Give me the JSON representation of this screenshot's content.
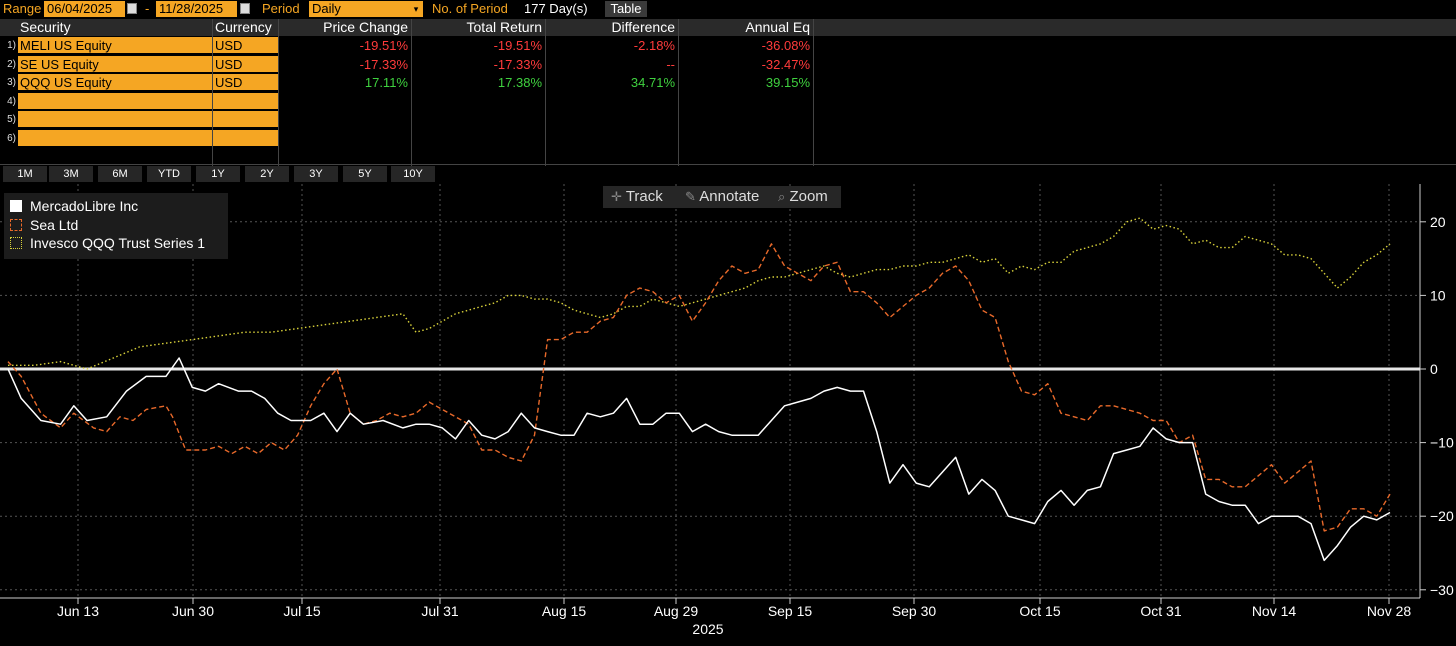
{
  "topbar": {
    "range_label": "Range",
    "start_date": "06/04/2025",
    "dash": "-",
    "end_date": "11/28/2025",
    "period_label": "Period",
    "period_value": "Daily",
    "num_period_label": "No. of Period",
    "num_period_value": "177 Day(s)",
    "table_button": "Table"
  },
  "table": {
    "headers": [
      "Security",
      "Currency",
      "Price Change",
      "Total Return",
      "Difference",
      "Annual Eq"
    ],
    "rows": [
      {
        "idx": "1)",
        "security": "MELI US Equity",
        "currency": "USD",
        "price_change": "-19.51%",
        "total_return": "-19.51%",
        "difference": "-2.18%",
        "annual_eq": "-36.08%"
      },
      {
        "idx": "2)",
        "security": "SE US Equity",
        "currency": "USD",
        "price_change": "-17.33%",
        "total_return": "-17.33%",
        "difference": "--",
        "annual_eq": "-32.47%"
      },
      {
        "idx": "3)",
        "security": "QQQ US Equity",
        "currency": "USD",
        "price_change": "17.11%",
        "total_return": "17.38%",
        "difference": "34.71%",
        "annual_eq": "39.15%"
      },
      {
        "idx": "4)",
        "security": "",
        "currency": "",
        "price_change": "",
        "total_return": "",
        "difference": "",
        "annual_eq": ""
      },
      {
        "idx": "5)",
        "security": "",
        "currency": "",
        "price_change": "",
        "total_return": "",
        "difference": "",
        "annual_eq": ""
      },
      {
        "idx": "6)",
        "security": "",
        "currency": "",
        "price_change": "",
        "total_return": "",
        "difference": "",
        "annual_eq": ""
      }
    ],
    "colors": {
      "negative": "#ff3b3b",
      "positive": "#3fd13f",
      "accent": "#f5a623"
    }
  },
  "period_buttons": [
    "1M",
    "3M",
    "6M",
    "YTD",
    "1Y",
    "2Y",
    "3Y",
    "5Y",
    "10Y"
  ],
  "tools": {
    "track": "Track",
    "annotate": "Annotate",
    "zoom": "Zoom"
  },
  "chart_data": {
    "type": "line",
    "xlabel": "2025",
    "x_tick_labels": [
      "Jun 13",
      "Jun 30",
      "Jul 15",
      "Jul 31",
      "Aug 15",
      "Aug 29",
      "Sep 15",
      "Sep 30",
      "Oct 15",
      "Oct 31",
      "Nov 14",
      "Nov 28"
    ],
    "y_ticks": [
      20,
      10,
      0,
      -10,
      -20,
      -30
    ],
    "ylim": [
      -30,
      22
    ],
    "legend_position": "top-left",
    "grid": true,
    "series": [
      {
        "name": "MercadoLibre Inc",
        "color": "#ffffff",
        "style": "solid",
        "points": [
          [
            0,
            0
          ],
          [
            2,
            -4
          ],
          [
            5,
            -7
          ],
          [
            8,
            -7.5
          ],
          [
            10,
            -5
          ],
          [
            12,
            -7
          ],
          [
            15,
            -6.5
          ],
          [
            18,
            -3
          ],
          [
            21,
            -1
          ],
          [
            24,
            -1
          ],
          [
            26,
            1.5
          ],
          [
            28,
            -2.5
          ],
          [
            30,
            -3
          ],
          [
            32,
            -2
          ],
          [
            35,
            -3
          ],
          [
            37,
            -3
          ],
          [
            39,
            -4
          ],
          [
            41,
            -6
          ],
          [
            43,
            -7
          ],
          [
            46,
            -7
          ],
          [
            48,
            -6
          ],
          [
            50,
            -8.5
          ],
          [
            52,
            -6
          ],
          [
            54,
            -7.5
          ],
          [
            57,
            -7
          ],
          [
            60,
            -8
          ],
          [
            62,
            -7.5
          ],
          [
            64,
            -7.5
          ],
          [
            66,
            -8
          ],
          [
            68,
            -9.5
          ],
          [
            70,
            -7
          ],
          [
            72,
            -9
          ],
          [
            74,
            -9.5
          ],
          [
            76,
            -8.5
          ],
          [
            78,
            -6
          ],
          [
            80,
            -8
          ],
          [
            82,
            -8.5
          ],
          [
            84,
            -9
          ],
          [
            86,
            -9
          ],
          [
            88,
            -6
          ],
          [
            90,
            -6.5
          ],
          [
            92,
            -6
          ],
          [
            94,
            -4
          ],
          [
            96,
            -7.5
          ],
          [
            98,
            -7.5
          ],
          [
            100,
            -6
          ],
          [
            102,
            -6
          ],
          [
            104,
            -8.5
          ],
          [
            106,
            -7.5
          ],
          [
            108,
            -8.5
          ],
          [
            110,
            -9
          ],
          [
            112,
            -9
          ],
          [
            114,
            -9
          ],
          [
            116,
            -7
          ],
          [
            118,
            -5
          ],
          [
            120,
            -4.5
          ],
          [
            122,
            -4
          ],
          [
            124,
            -3
          ],
          [
            126,
            -2.5
          ],
          [
            128,
            -3
          ],
          [
            130,
            -3
          ],
          [
            132,
            -8.5
          ],
          [
            134,
            -15.5
          ],
          [
            136,
            -13
          ],
          [
            138,
            -15.5
          ],
          [
            140,
            -16
          ],
          [
            142,
            -14
          ],
          [
            144,
            -12
          ],
          [
            146,
            -17
          ],
          [
            148,
            -15
          ],
          [
            150,
            -16.5
          ],
          [
            152,
            -20
          ],
          [
            154,
            -20.5
          ],
          [
            156,
            -21
          ],
          [
            158,
            -18
          ],
          [
            160,
            -16.5
          ],
          [
            162,
            -18.5
          ],
          [
            164,
            -16.5
          ],
          [
            166,
            -16
          ],
          [
            168,
            -11.5
          ],
          [
            170,
            -11
          ],
          [
            172,
            -10.5
          ],
          [
            174,
            -8
          ],
          [
            176,
            -9.5
          ],
          [
            178,
            -10
          ],
          [
            180,
            -10
          ],
          [
            182,
            -17
          ],
          [
            184,
            -18
          ],
          [
            186,
            -18.5
          ],
          [
            188,
            -18.5
          ],
          [
            190,
            -21
          ],
          [
            192,
            -20
          ],
          [
            194,
            -20
          ],
          [
            196,
            -20
          ],
          [
            198,
            -21
          ],
          [
            200,
            -26
          ],
          [
            202,
            -24
          ],
          [
            204,
            -21.5
          ],
          [
            206,
            -20
          ],
          [
            208,
            -20.5
          ],
          [
            210,
            -19.5
          ]
        ]
      },
      {
        "name": "Sea Ltd",
        "color": "#e8692a",
        "style": "dashed",
        "points": [
          [
            0,
            1
          ],
          [
            2,
            -1
          ],
          [
            5,
            -6
          ],
          [
            8,
            -8
          ],
          [
            10,
            -6
          ],
          [
            13,
            -8
          ],
          [
            15,
            -8.5
          ],
          [
            17,
            -6.5
          ],
          [
            19,
            -7
          ],
          [
            21,
            -5.5
          ],
          [
            24,
            -5
          ],
          [
            25,
            -6.5
          ],
          [
            27,
            -11
          ],
          [
            30,
            -11
          ],
          [
            32,
            -10.5
          ],
          [
            34,
            -11.5
          ],
          [
            36,
            -10.5
          ],
          [
            38,
            -11.5
          ],
          [
            40,
            -10
          ],
          [
            42,
            -11
          ],
          [
            44,
            -9
          ],
          [
            46,
            -5
          ],
          [
            48,
            -2
          ],
          [
            50,
            0
          ],
          [
            52,
            -6
          ],
          [
            54,
            -7.5
          ],
          [
            56,
            -7
          ],
          [
            58,
            -6
          ],
          [
            60,
            -6.5
          ],
          [
            62,
            -6
          ],
          [
            64,
            -4.5
          ],
          [
            66,
            -5.5
          ],
          [
            68,
            -6.5
          ],
          [
            70,
            -7.5
          ],
          [
            72,
            -11
          ],
          [
            74,
            -11
          ],
          [
            76,
            -12
          ],
          [
            78,
            -12.5
          ],
          [
            80,
            -9
          ],
          [
            82,
            4
          ],
          [
            84,
            4
          ],
          [
            86,
            5
          ],
          [
            88,
            5
          ],
          [
            90,
            6.5
          ],
          [
            92,
            7
          ],
          [
            94,
            10
          ],
          [
            96,
            11
          ],
          [
            98,
            10.5
          ],
          [
            100,
            9
          ],
          [
            102,
            10
          ],
          [
            104,
            6.5
          ],
          [
            106,
            9
          ],
          [
            108,
            12
          ],
          [
            110,
            14
          ],
          [
            112,
            13
          ],
          [
            114,
            13.5
          ],
          [
            116,
            17
          ],
          [
            118,
            14
          ],
          [
            120,
            13
          ],
          [
            122,
            12
          ],
          [
            124,
            14
          ],
          [
            126,
            14.5
          ],
          [
            128,
            10.5
          ],
          [
            130,
            10.5
          ],
          [
            132,
            9
          ],
          [
            134,
            7
          ],
          [
            136,
            8.5
          ],
          [
            138,
            10
          ],
          [
            140,
            11
          ],
          [
            142,
            13
          ],
          [
            144,
            14
          ],
          [
            146,
            12
          ],
          [
            148,
            8
          ],
          [
            150,
            7
          ],
          [
            152,
            1
          ],
          [
            154,
            -3
          ],
          [
            156,
            -3.5
          ],
          [
            158,
            -2
          ],
          [
            160,
            -6
          ],
          [
            162,
            -6.5
          ],
          [
            164,
            -7
          ],
          [
            166,
            -5
          ],
          [
            168,
            -5
          ],
          [
            170,
            -5.5
          ],
          [
            172,
            -6
          ],
          [
            174,
            -7
          ],
          [
            176,
            -7
          ],
          [
            178,
            -10
          ],
          [
            180,
            -9
          ],
          [
            182,
            -15
          ],
          [
            184,
            -15
          ],
          [
            186,
            -16
          ],
          [
            188,
            -16
          ],
          [
            190,
            -14.5
          ],
          [
            192,
            -13
          ],
          [
            194,
            -15.5
          ],
          [
            196,
            -14
          ],
          [
            198,
            -12.5
          ],
          [
            200,
            -22
          ],
          [
            202,
            -21.5
          ],
          [
            204,
            -19
          ],
          [
            206,
            -19
          ],
          [
            208,
            -20
          ],
          [
            210,
            -17
          ]
        ]
      },
      {
        "name": "Invesco QQQ Trust Series 1",
        "color": "#d9d23a",
        "style": "dotted",
        "points": [
          [
            0,
            0.5
          ],
          [
            4,
            0.5
          ],
          [
            8,
            1
          ],
          [
            12,
            0
          ],
          [
            16,
            1.5
          ],
          [
            20,
            3
          ],
          [
            24,
            3.5
          ],
          [
            28,
            4
          ],
          [
            32,
            4.5
          ],
          [
            36,
            5
          ],
          [
            40,
            5
          ],
          [
            44,
            5.5
          ],
          [
            48,
            6
          ],
          [
            52,
            6.5
          ],
          [
            56,
            7
          ],
          [
            60,
            7.5
          ],
          [
            62,
            5
          ],
          [
            64,
            5.5
          ],
          [
            66,
            6.5
          ],
          [
            68,
            7.5
          ],
          [
            70,
            8
          ],
          [
            72,
            8.5
          ],
          [
            74,
            9
          ],
          [
            76,
            10
          ],
          [
            78,
            10
          ],
          [
            80,
            9.5
          ],
          [
            82,
            9.5
          ],
          [
            84,
            9
          ],
          [
            86,
            8
          ],
          [
            88,
            7.5
          ],
          [
            90,
            7
          ],
          [
            92,
            7.5
          ],
          [
            94,
            8.5
          ],
          [
            96,
            8.5
          ],
          [
            98,
            9.5
          ],
          [
            100,
            9
          ],
          [
            102,
            8.5
          ],
          [
            104,
            9
          ],
          [
            106,
            9.5
          ],
          [
            108,
            10
          ],
          [
            110,
            10.5
          ],
          [
            112,
            11
          ],
          [
            114,
            12
          ],
          [
            116,
            12.5
          ],
          [
            118,
            12.5
          ],
          [
            120,
            13
          ],
          [
            122,
            13.5
          ],
          [
            124,
            14
          ],
          [
            126,
            13
          ],
          [
            128,
            12.5
          ],
          [
            130,
            13
          ],
          [
            132,
            13.5
          ],
          [
            134,
            13.5
          ],
          [
            136,
            14
          ],
          [
            138,
            14
          ],
          [
            140,
            14.5
          ],
          [
            142,
            14.5
          ],
          [
            144,
            15
          ],
          [
            146,
            15.5
          ],
          [
            148,
            14.5
          ],
          [
            150,
            15
          ],
          [
            152,
            13
          ],
          [
            154,
            14
          ],
          [
            156,
            13.5
          ],
          [
            158,
            14.5
          ],
          [
            160,
            14.5
          ],
          [
            162,
            16
          ],
          [
            164,
            16.5
          ],
          [
            166,
            17
          ],
          [
            168,
            18
          ],
          [
            170,
            20
          ],
          [
            172,
            20.5
          ],
          [
            174,
            19
          ],
          [
            176,
            19.5
          ],
          [
            178,
            19
          ],
          [
            180,
            17
          ],
          [
            182,
            17.5
          ],
          [
            184,
            16.5
          ],
          [
            186,
            16.5
          ],
          [
            188,
            18
          ],
          [
            190,
            17.5
          ],
          [
            192,
            17
          ],
          [
            194,
            15.5
          ],
          [
            196,
            15.5
          ],
          [
            198,
            15
          ],
          [
            200,
            13
          ],
          [
            202,
            11
          ],
          [
            204,
            12.5
          ],
          [
            206,
            14.5
          ],
          [
            208,
            15.5
          ],
          [
            210,
            17
          ]
        ]
      }
    ],
    "zero_line": 0
  }
}
